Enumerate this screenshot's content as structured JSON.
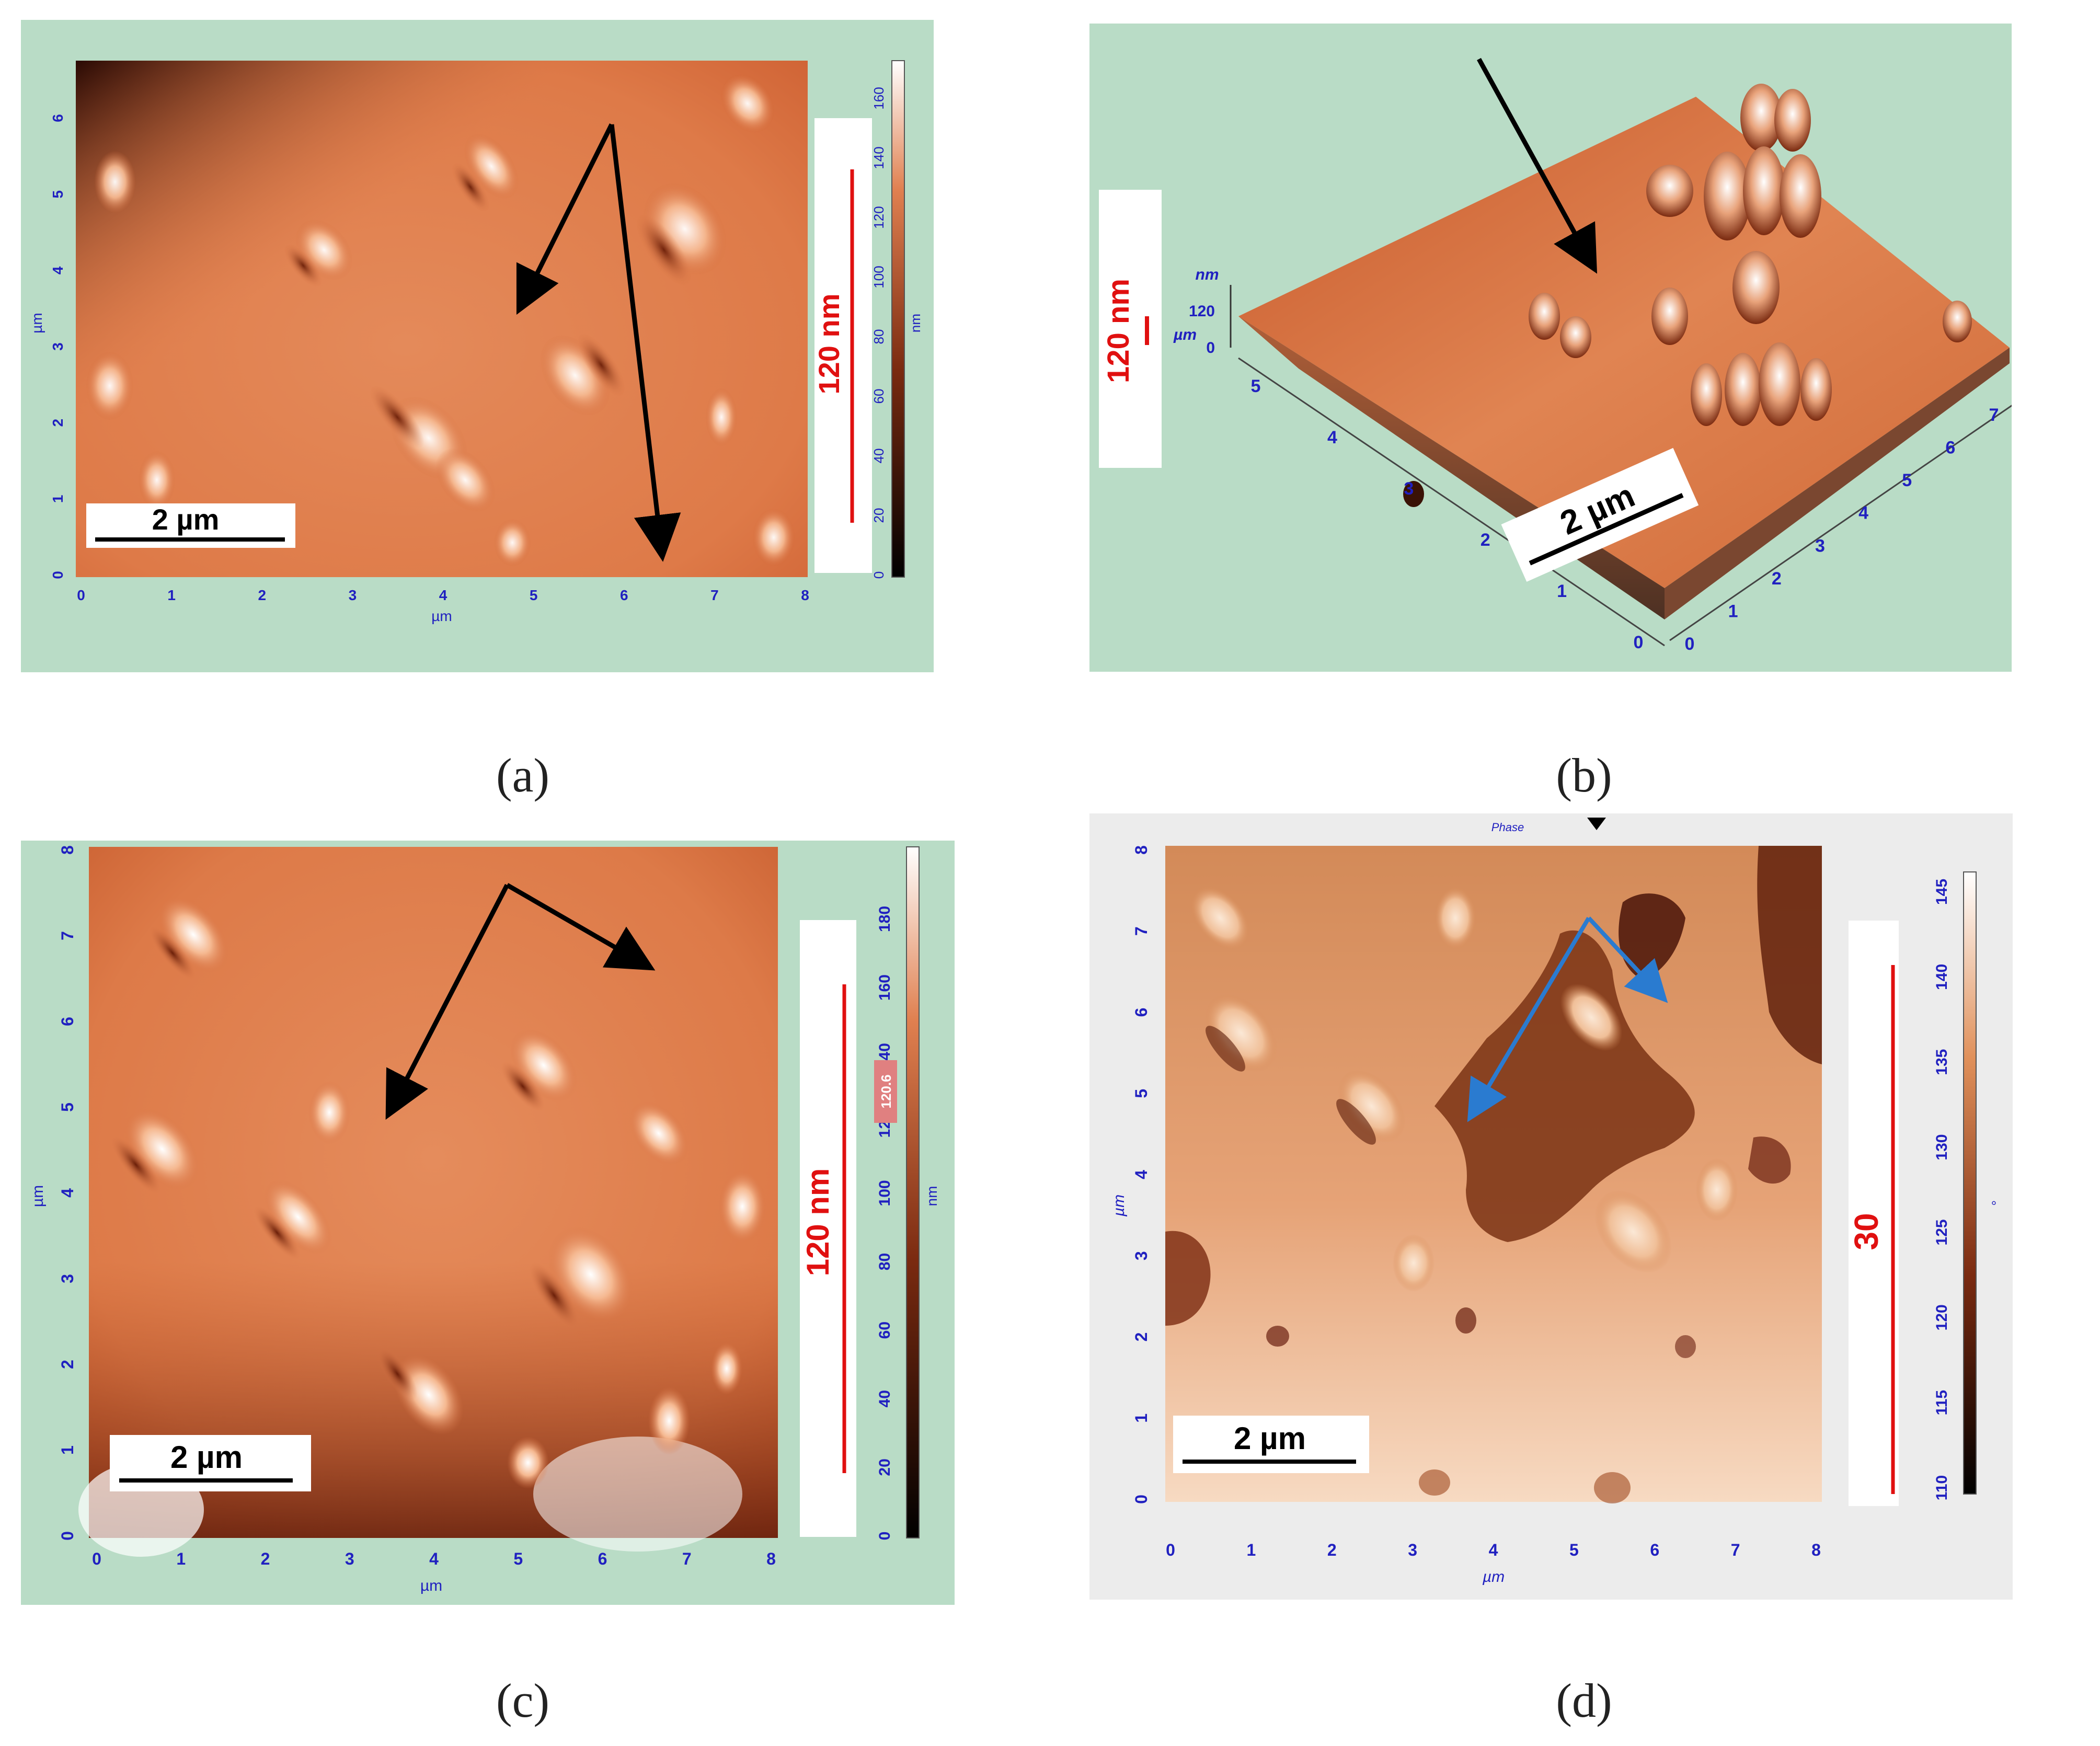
{
  "panels": [
    {
      "id": "a",
      "caption": "(a)",
      "x_ticks": [
        "0",
        "1",
        "2",
        "3",
        "4",
        "5",
        "6",
        "7",
        "8"
      ],
      "y_ticks": [
        "0",
        "1",
        "2",
        "3",
        "4",
        "5",
        "6"
      ],
      "x_unit": "µm",
      "y_unit": "µm",
      "scalebar_label": "2 µm",
      "height_label": "120 nm",
      "colorbar_ticks": [
        "0",
        "20",
        "40",
        "60",
        "80",
        "100",
        "120",
        "140",
        "160"
      ],
      "colorbar_unit": "nm"
    },
    {
      "id": "b",
      "caption": "(b)",
      "x_ticks": [
        "0",
        "1",
        "2",
        "3",
        "4",
        "5",
        "6",
        "7"
      ],
      "y_ticks": [
        "0",
        "1",
        "2",
        "3",
        "4",
        "5"
      ],
      "x_unit": "µm",
      "y_unit": "µm",
      "z_unit": "nm",
      "z_ticks": [
        "0",
        "120"
      ],
      "scalebar_label": "2 µm",
      "height_label": "120 nm"
    },
    {
      "id": "c",
      "caption": "(c)",
      "x_ticks": [
        "0",
        "1",
        "2",
        "3",
        "4",
        "5",
        "6",
        "7",
        "8"
      ],
      "y_ticks": [
        "0",
        "1",
        "2",
        "3",
        "4",
        "5",
        "6",
        "7",
        "8"
      ],
      "x_unit": "µm",
      "y_unit": "µm",
      "scalebar_label": "2 µm",
      "height_label": "120 nm",
      "colorbar_ticks": [
        "0",
        "20",
        "40",
        "60",
        "80",
        "100",
        "120",
        "140",
        "160",
        "180"
      ],
      "colorbar_unit": "nm",
      "colorbar_marker": "120.6"
    },
    {
      "id": "d",
      "caption": "(d)",
      "title": "Phase",
      "x_ticks": [
        "0",
        "1",
        "2",
        "3",
        "4",
        "5",
        "6",
        "7",
        "8"
      ],
      "y_ticks": [
        "0",
        "1",
        "2",
        "3",
        "4",
        "5",
        "6",
        "7",
        "8"
      ],
      "x_unit": "µm",
      "y_unit": "µm",
      "scalebar_label": "2 µm",
      "height_label": "30",
      "colorbar_ticks": [
        "110",
        "115",
        "120",
        "125",
        "130",
        "135",
        "140",
        "145"
      ],
      "colorbar_unit": "°"
    }
  ],
  "colors": {
    "panel_bg": "#b9dcc6",
    "panel_bg_d": "#ececec",
    "surface": "#d96a3c",
    "axis_text": "#2020c0",
    "height_bar": "#e01010",
    "arrow_black": "#000000",
    "arrow_blue": "#2a7bd0"
  }
}
